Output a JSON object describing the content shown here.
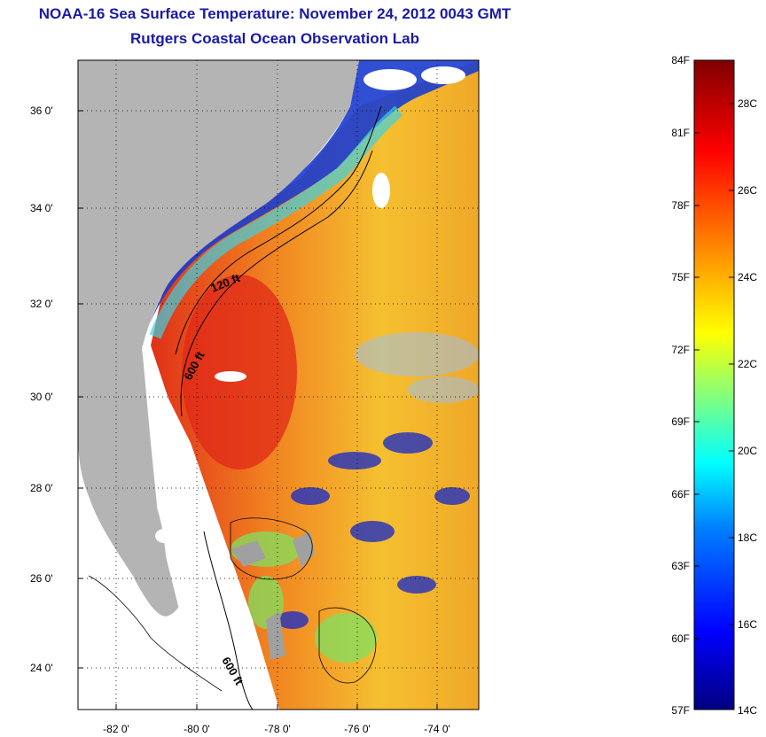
{
  "title_line1": "NOAA-16 Sea Surface Temperature:  November 24, 2012 0043 GMT",
  "title_line2": "Rutgers Coastal Ocean Observation Lab",
  "lat_ticks": [
    "36 0'",
    "34 0'",
    "32 0'",
    "30 0'",
    "28 0'",
    "26 0'",
    "24 0'"
  ],
  "lon_ticks": [
    "-82 0'",
    "-80 0'",
    "-78 0'",
    "-76 0'",
    "-74 0'"
  ],
  "contours": {
    "c120": "120 ft",
    "c600a": "600 ft",
    "c600b": "600 ft"
  },
  "colorbar": {
    "f_labels": [
      "84F",
      "81F",
      "78F",
      "75F",
      "72F",
      "69F",
      "66F",
      "63F",
      "60F",
      "57F"
    ],
    "c_labels": [
      "28C",
      "26C",
      "24C",
      "22C",
      "20C",
      "18C",
      "16C",
      "14C"
    ],
    "colors": [
      "#000080",
      "#0000ff",
      "#0080ff",
      "#00ffff",
      "#80ff80",
      "#ffff00",
      "#ff8000",
      "#ff0000",
      "#800000"
    ]
  },
  "palette": {
    "land": "#b4b4b4",
    "cloud": "#ffffff",
    "cold": "#1432c8",
    "warm": "#f0a028",
    "hot": "#e02818",
    "mid": "#f5c832"
  }
}
